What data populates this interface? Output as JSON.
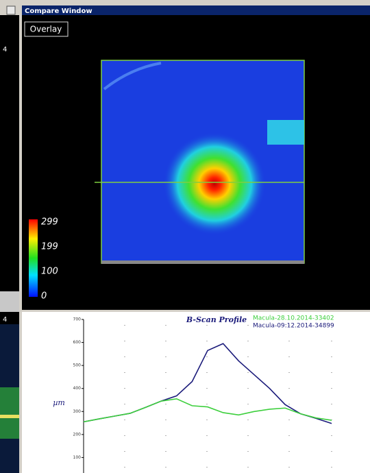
{
  "window": {
    "title": "Compare Window",
    "button": "Overlay"
  },
  "left_panel": {
    "labels": [
      "4",
      "4"
    ]
  },
  "colorbar": {
    "labels": [
      299,
      199,
      100,
      0
    ]
  },
  "chart_data": {
    "type": "line",
    "title": "B-Scan Profile",
    "y_label": "µm",
    "ylim": [
      0,
      700
    ],
    "yticks": [
      100,
      200,
      300,
      400,
      500,
      600,
      700
    ],
    "grid": true,
    "series": [
      {
        "name": "Macula-28.10.2014-33402",
        "color": "#3ccf3c",
        "values": [
          255,
          268,
          280,
          292,
          318,
          345,
          355,
          325,
          320,
          295,
          285,
          300,
          310,
          315,
          290,
          272,
          262
        ]
      },
      {
        "name": "Macula-09:12.2014-34899",
        "color": "#1a1a7a",
        "values": [
          255,
          268,
          280,
          292,
          318,
          345,
          368,
          430,
          565,
          595,
          520,
          460,
          400,
          330,
          290,
          270,
          248
        ]
      }
    ]
  }
}
